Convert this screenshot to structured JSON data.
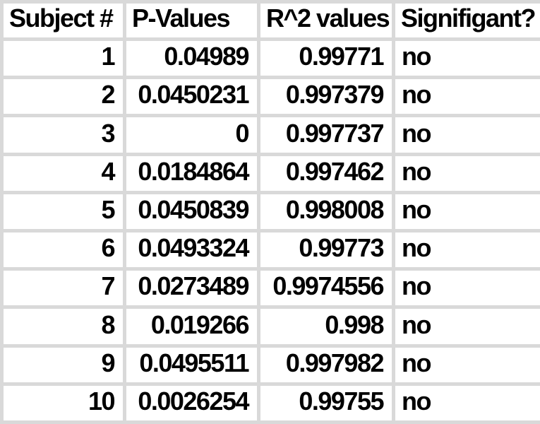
{
  "table": {
    "columns": [
      {
        "key": "subject",
        "label": "Subject #",
        "align": "right"
      },
      {
        "key": "pvalue",
        "label": "P-Values",
        "align": "right"
      },
      {
        "key": "r2",
        "label": "R^2 values",
        "align": "right"
      },
      {
        "key": "significant",
        "label": "Signifigant?",
        "align": "left"
      }
    ],
    "rows": [
      [
        "1",
        "0.04989",
        "0.99771",
        "no"
      ],
      [
        "2",
        "0.0450231",
        "0.997379",
        "no"
      ],
      [
        "3",
        "0",
        "0.997737",
        "no"
      ],
      [
        "4",
        "0.0184864",
        "0.997462",
        "no"
      ],
      [
        "5",
        "0.0450839",
        "0.998008",
        "no"
      ],
      [
        "6",
        "0.0493324",
        "0.99773",
        "no"
      ],
      [
        "7",
        "0.0273489",
        "0.9974556",
        "no"
      ],
      [
        "8",
        "0.019266",
        "0.998",
        "no"
      ],
      [
        "9",
        "0.0495511",
        "0.997982",
        "no"
      ],
      [
        "10",
        "0.0026254",
        "0.99755",
        "no"
      ]
    ],
    "colors": {
      "grid": "#d9d9d9",
      "cell_bg": "#ffffff",
      "text": "#000000"
    }
  }
}
